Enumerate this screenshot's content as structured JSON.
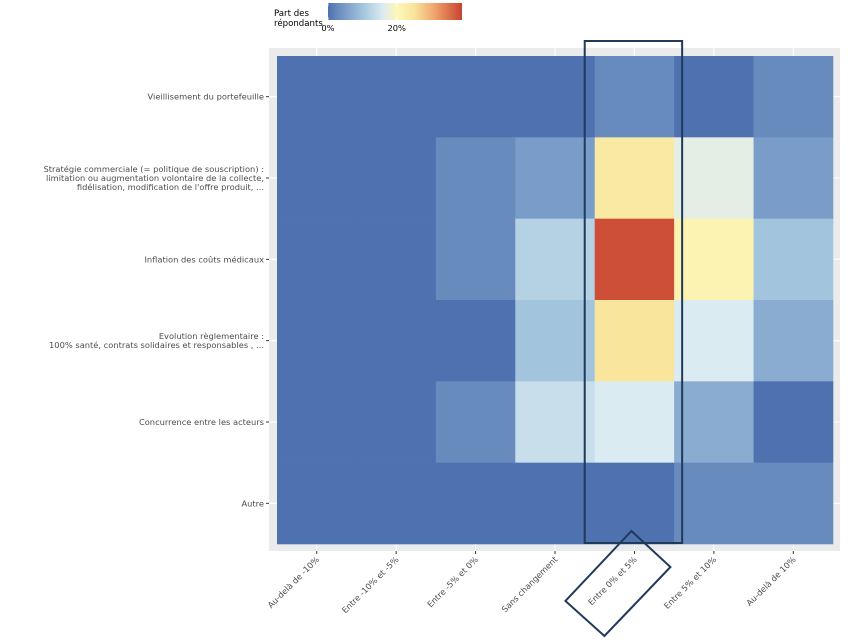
{
  "chart_data": {
    "type": "heatmap",
    "title": "",
    "xlabel": "",
    "ylabel": "",
    "x_categories": [
      "Au-delà de -10%",
      "Entre -10% et -5%",
      "Entre -5% et 0%",
      "Sans changement",
      "Entre 0% et 5%",
      "Entre 5% et 10%",
      "Au-delà de 10%"
    ],
    "y_categories": [
      {
        "lines": [
          "Vieillisement du portefeuille"
        ]
      },
      {
        "lines": [
          "Stratégie commerciale (= politique de souscription) :",
          "limitation ou augmentation volontaire de la collecte,",
          "fidélisation, modification de l'offre produit, ..."
        ]
      },
      {
        "lines": [
          "Inflation des coûts médicaux"
        ]
      },
      {
        "lines": [
          "Evolution règlementaire :",
          "100% santé, contrats solidaires et responsables , ..."
        ]
      },
      {
        "lines": [
          "Concurrence entre les acteurs"
        ]
      },
      {
        "lines": [
          "Autre"
        ]
      }
    ],
    "values_percent": [
      [
        0,
        0,
        0,
        0,
        3,
        0,
        3
      ],
      [
        0,
        0,
        3,
        5,
        24,
        17,
        5
      ],
      [
        0,
        0,
        3,
        12,
        38,
        21,
        10
      ],
      [
        0,
        0,
        0,
        10,
        25,
        16,
        7
      ],
      [
        0,
        0,
        3,
        14,
        16,
        7,
        0
      ],
      [
        0,
        0,
        0,
        0,
        0,
        3,
        3
      ]
    ],
    "legend": {
      "title_lines": [
        "Part des",
        "répondants"
      ],
      "ticks": [
        {
          "value": 0,
          "label": "0%"
        },
        {
          "value": 20,
          "label": "20%"
        }
      ],
      "range": [
        0,
        39
      ],
      "placement": "top"
    },
    "color_scale": {
      "stops": [
        {
          "value": 0,
          "color": "#4e71b0"
        },
        {
          "value": 5,
          "color": "#7a9cc8"
        },
        {
          "value": 10,
          "color": "#a2c4dd"
        },
        {
          "value": 16,
          "color": "#dbebf2"
        },
        {
          "value": 20,
          "color": "#fdf7b9"
        },
        {
          "value": 25,
          "color": "#f9e59c"
        },
        {
          "value": 31,
          "color": "#f0a46c"
        },
        {
          "value": 39,
          "color": "#c8432f"
        }
      ]
    },
    "highlight": {
      "column": "Entre 0% et 5%",
      "color": "#1f3a5a"
    },
    "grid": true,
    "panel_background": "#ebebeb"
  }
}
